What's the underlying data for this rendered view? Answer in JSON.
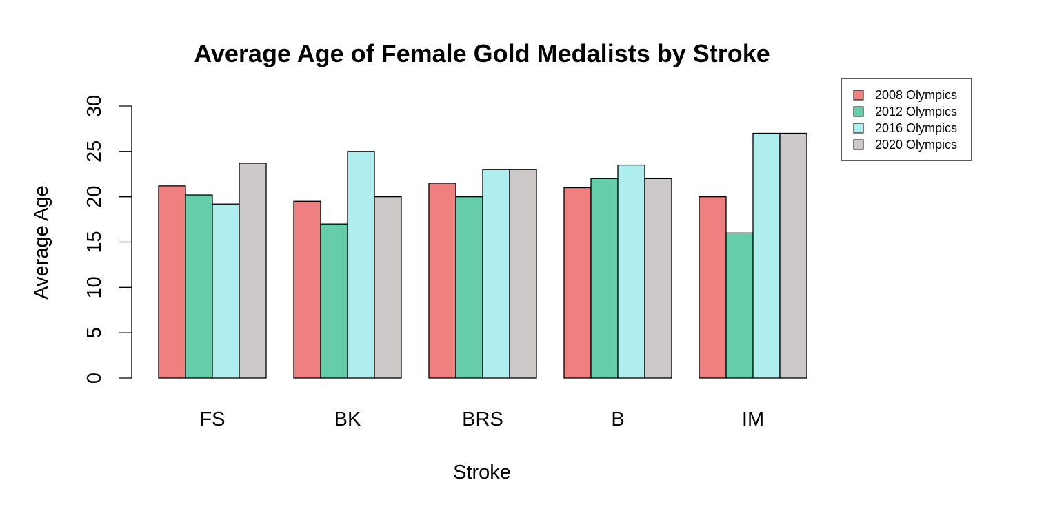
{
  "chart_data": {
    "type": "bar",
    "title": "Average Age of Female Gold Medalists by Stroke",
    "xlabel": "Stroke",
    "ylabel": "Average Age",
    "categories": [
      "FS",
      "BK",
      "BRS",
      "B",
      "IM"
    ],
    "ylim": [
      0,
      30
    ],
    "yticks": [
      0,
      5,
      10,
      15,
      20,
      25,
      30
    ],
    "grid": false,
    "legend_position": "top-right",
    "series": [
      {
        "name": "2008 Olympics",
        "color": "#f08080",
        "values": [
          21.2,
          19.5,
          21.5,
          21.0,
          20.0
        ]
      },
      {
        "name": "2012 Olympics",
        "color": "#66cdaa",
        "values": [
          20.2,
          17.0,
          20.0,
          22.0,
          16.0
        ]
      },
      {
        "name": "2016 Olympics",
        "color": "#afeeee",
        "values": [
          19.2,
          25.0,
          23.0,
          23.5,
          27.0
        ]
      },
      {
        "name": "2020 Olympics",
        "color": "#cdc9c9",
        "values": [
          23.7,
          20.0,
          23.0,
          22.0,
          27.0
        ]
      }
    ]
  }
}
